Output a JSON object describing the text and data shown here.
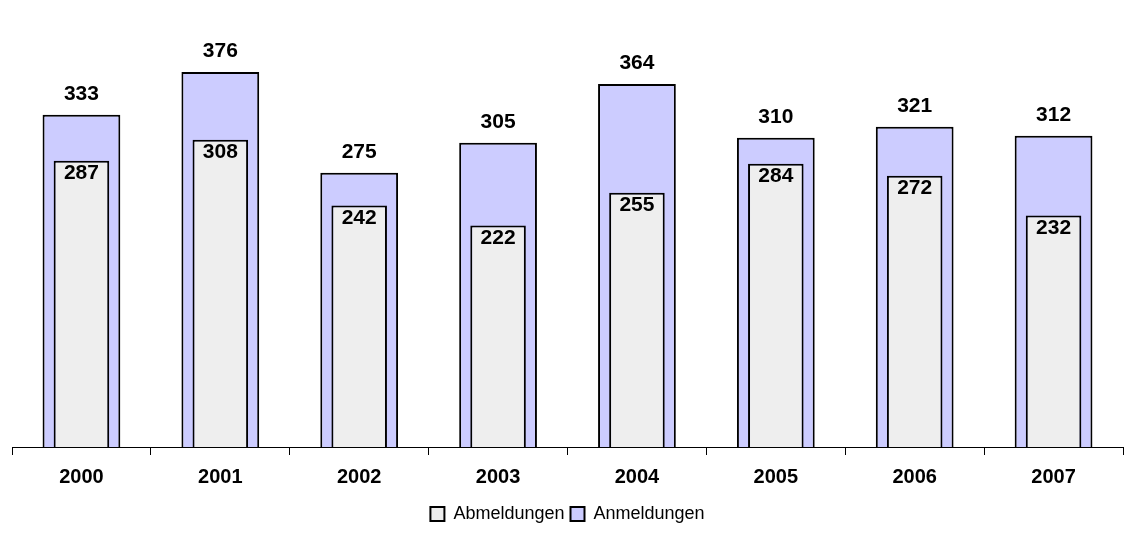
{
  "chart_data": {
    "type": "bar",
    "categories": [
      "2000",
      "2001",
      "2002",
      "2003",
      "2004",
      "2005",
      "2006",
      "2007"
    ],
    "series": [
      {
        "name": "Anmeldungen",
        "color": "#ccccff",
        "values": [
          333,
          376,
          275,
          305,
          364,
          310,
          321,
          312
        ]
      },
      {
        "name": "Abmeldungen",
        "color": "#eeeeee",
        "values": [
          287,
          308,
          242,
          222,
          255,
          284,
          272,
          232
        ]
      }
    ],
    "data_labels": true,
    "legend": "bottom"
  }
}
